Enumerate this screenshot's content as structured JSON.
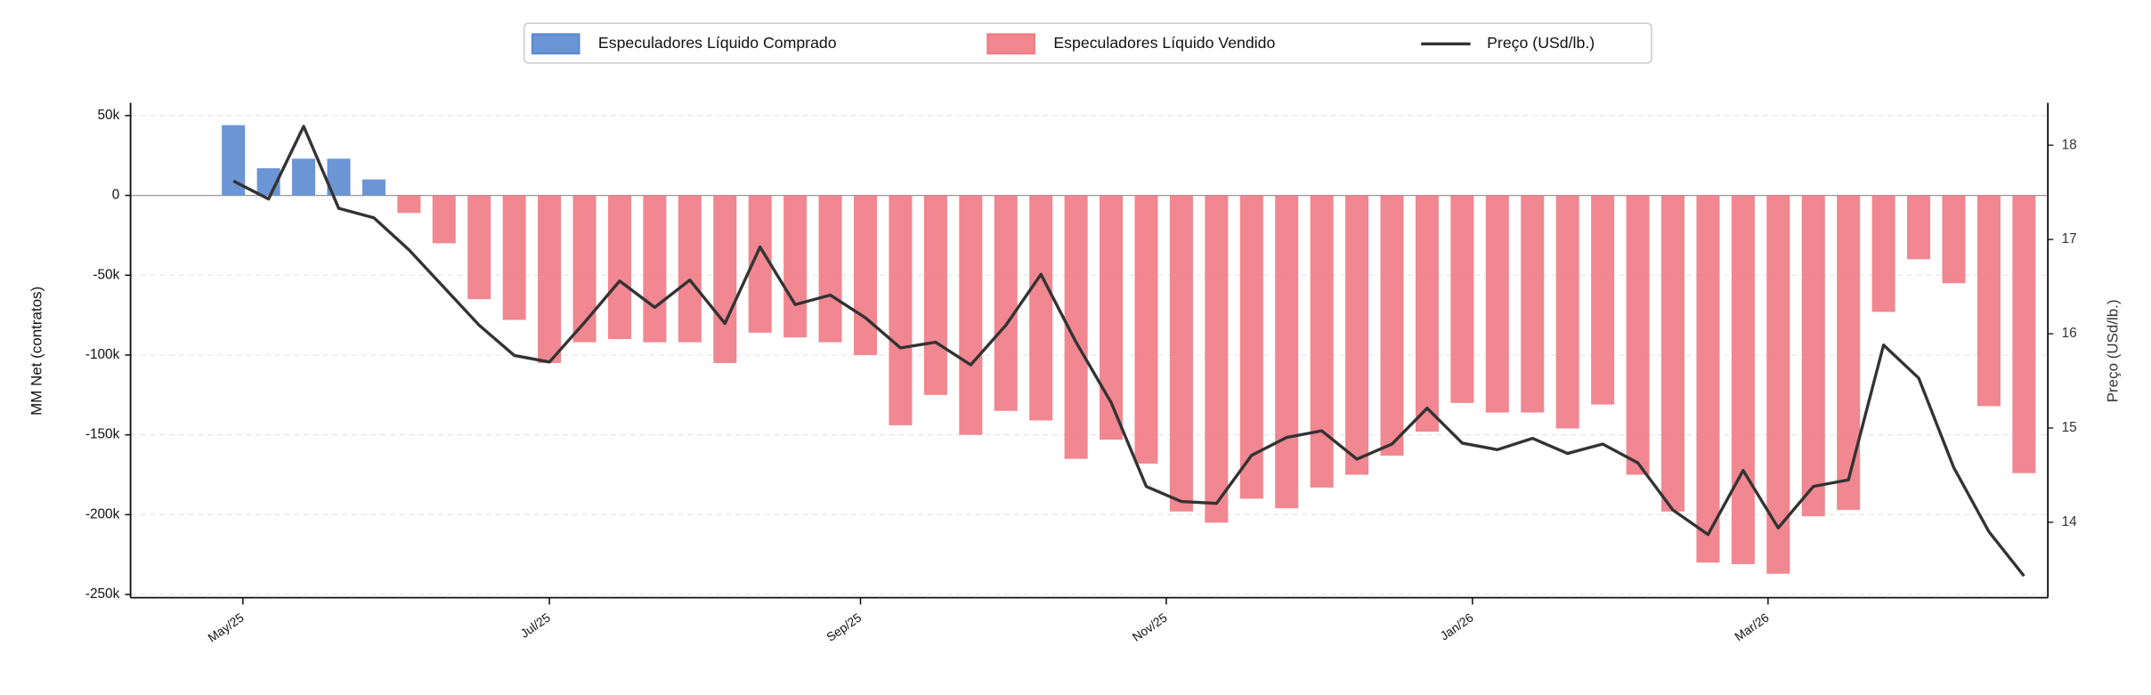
{
  "chart_data": {
    "type": "bar_line",
    "categories": [
      null,
      null,
      null,
      null,
      null,
      null,
      null,
      null,
      null,
      null,
      null,
      null,
      null,
      null,
      null,
      null,
      null,
      null,
      null,
      null,
      null,
      null,
      null,
      null,
      null,
      null,
      null,
      null,
      null,
      null,
      null,
      null,
      null,
      null,
      null,
      null,
      null,
      null,
      null,
      null,
      null,
      null,
      null,
      null,
      null,
      null,
      null,
      null,
      null,
      null,
      null,
      null
    ],
    "series": [
      {
        "name": "Especuladores Líquido Comprado",
        "color": "#5b8ad0",
        "type": "bar",
        "values": [
          44000,
          17000,
          23000,
          23000,
          10000,
          null,
          null,
          null,
          null,
          null,
          null,
          null,
          null,
          null,
          null,
          null,
          null,
          null,
          null,
          null,
          null,
          null,
          null,
          null,
          null,
          null,
          null,
          null,
          null,
          null,
          null,
          null,
          null,
          null,
          null,
          null,
          null,
          null,
          null,
          null,
          null,
          null,
          null,
          null,
          null,
          null,
          null,
          null,
          null,
          null,
          null,
          null
        ]
      },
      {
        "name": "Especuladores Líquido Vendido",
        "color": "#f07a84",
        "type": "bar",
        "values": [
          null,
          null,
          null,
          null,
          null,
          -11000,
          -30000,
          -65000,
          -78000,
          -105000,
          -92000,
          -90000,
          -92000,
          -92000,
          -105000,
          -86000,
          -89000,
          -92000,
          -100000,
          -144000,
          -125000,
          -150000,
          -135000,
          -141000,
          -165000,
          -153000,
          -168000,
          -198000,
          -205000,
          -190000,
          -196000,
          -183000,
          -175000,
          -163000,
          -148000,
          -130000,
          -136000,
          -136000,
          -146000,
          -131000,
          -175000,
          -198000,
          -230000,
          -231000,
          -237000,
          -201000,
          -197000,
          -73000,
          -40000,
          -55000,
          -132000,
          -174000
        ]
      },
      {
        "name": "Preço (USd/lb.)",
        "color": "#333333",
        "type": "line",
        "axis": "y2",
        "values": [
          17.62,
          17.43,
          18.2,
          17.33,
          17.23,
          16.89,
          16.49,
          16.09,
          15.77,
          15.7,
          16.12,
          16.56,
          16.28,
          16.57,
          16.11,
          16.92,
          16.31,
          16.41,
          16.17,
          15.85,
          15.91,
          15.67,
          16.09,
          16.63,
          15.91,
          15.27,
          14.38,
          14.22,
          14.2,
          14.71,
          14.9,
          14.97,
          14.67,
          14.83,
          15.21,
          14.84,
          14.77,
          14.89,
          14.73,
          14.83,
          14.63,
          14.13,
          13.87,
          14.55,
          13.94,
          14.38,
          14.45,
          15.88,
          15.53,
          14.58,
          13.9,
          13.43
        ]
      }
    ],
    "y_label": "MM Net (contratos)",
    "y2_label": "Preço (USd/lb.)",
    "xlim": [
      -2.93,
      51.68
    ],
    "xticks": [
      {
        "value": 0.27,
        "label": "May/25"
      },
      {
        "value": 9,
        "label": "Jul/25"
      },
      {
        "value": 17.86,
        "label": "Sep/25"
      },
      {
        "value": 26.57,
        "label": "Nov/25"
      },
      {
        "value": 35.29,
        "label": "Jan/26"
      },
      {
        "value": 43.71,
        "label": "Mar/26"
      }
    ],
    "ylim": [
      -252000,
      58000
    ],
    "yticks": [
      {
        "value": -250000,
        "label": "-250k"
      },
      {
        "value": -200000,
        "label": "-200k"
      },
      {
        "value": -150000,
        "label": "-150k"
      },
      {
        "value": -100000,
        "label": "-100k"
      },
      {
        "value": -50000,
        "label": "-50k"
      },
      0,
      {
        "value": 50000,
        "label": "50k"
      }
    ],
    "y2lim": [
      13.2,
      18.45
    ],
    "y2ticks": [
      14,
      15,
      16,
      17,
      18
    ],
    "grid": true,
    "legend": "top"
  }
}
